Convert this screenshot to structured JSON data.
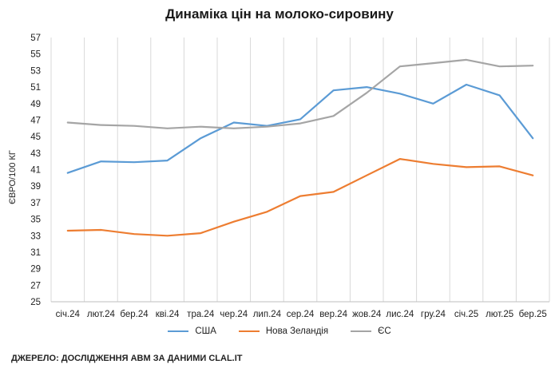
{
  "chart_data": {
    "type": "line",
    "title": "Динаміка цін на молоко-сировину",
    "ylabel": "ЄВРО/100 КГ",
    "xlabel": "",
    "ylim": [
      25,
      57
    ],
    "yticks": [
      25,
      27,
      29,
      31,
      33,
      35,
      37,
      39,
      41,
      43,
      45,
      47,
      49,
      51,
      53,
      55,
      57
    ],
    "categories": [
      "січ.24",
      "лют.24",
      "бер.24",
      "кві.24",
      "тра.24",
      "чер.24",
      "лип.24",
      "сер.24",
      "вер.24",
      "жов.24",
      "лис.24",
      "гру.24",
      "січ.25",
      "лют.25",
      "бер.25"
    ],
    "grid": "vertical",
    "legend_position": "bottom",
    "series": [
      {
        "name": "США",
        "color": "#5B9BD5",
        "values": [
          40.6,
          42.0,
          41.9,
          42.1,
          44.8,
          46.7,
          46.3,
          47.1,
          50.6,
          51.0,
          50.2,
          49.0,
          51.3,
          50.0,
          44.8
        ]
      },
      {
        "name": "Нова Зеландія",
        "color": "#ED7D31",
        "values": [
          33.6,
          33.7,
          33.2,
          33.0,
          33.3,
          34.7,
          35.9,
          37.8,
          38.3,
          40.3,
          42.3,
          41.7,
          41.3,
          41.4,
          40.3
        ]
      },
      {
        "name": "ЄС",
        "color": "#A5A5A5",
        "values": [
          46.7,
          46.4,
          46.3,
          46.0,
          46.2,
          46.0,
          46.2,
          46.6,
          47.5,
          50.3,
          53.5,
          53.9,
          54.3,
          53.5,
          53.6
        ]
      }
    ]
  },
  "source": "ДЖЕРЕЛО: ДОСЛІДЖЕННЯ AВМ ЗА ДАНИМИ CLAL.IT"
}
